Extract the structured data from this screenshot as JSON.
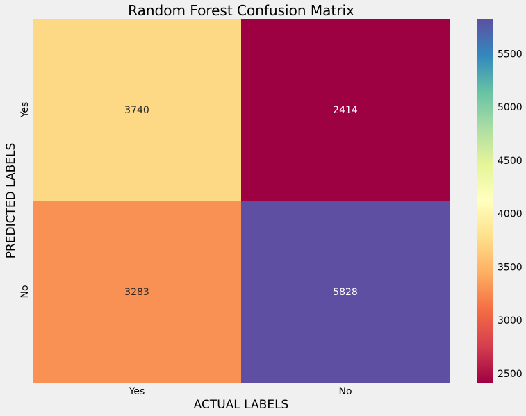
{
  "chart_data": {
    "type": "heatmap",
    "title": "Random Forest Confusion Matrix",
    "xlabel": "ACTUAL LABELS",
    "ylabel": "PREDICTED LABELS",
    "x_categories": [
      "Yes",
      "No"
    ],
    "y_categories": [
      "Yes",
      "No"
    ],
    "values": [
      [
        3740,
        2414
      ],
      [
        3283,
        5828
      ]
    ],
    "colormap": "Spectral",
    "colorbar": {
      "min": 2414,
      "max": 5828,
      "ticks": [
        "2500",
        "3000",
        "3500",
        "4000",
        "4500",
        "5000",
        "5500"
      ]
    },
    "cell_colors": [
      [
        "#fdd986",
        "#9e0142"
      ],
      [
        "#f99155",
        "#5e4fa2"
      ]
    ],
    "annotation_colors": [
      [
        "#262626",
        "#ffffff"
      ],
      [
        "#262626",
        "#ffffff"
      ]
    ]
  }
}
